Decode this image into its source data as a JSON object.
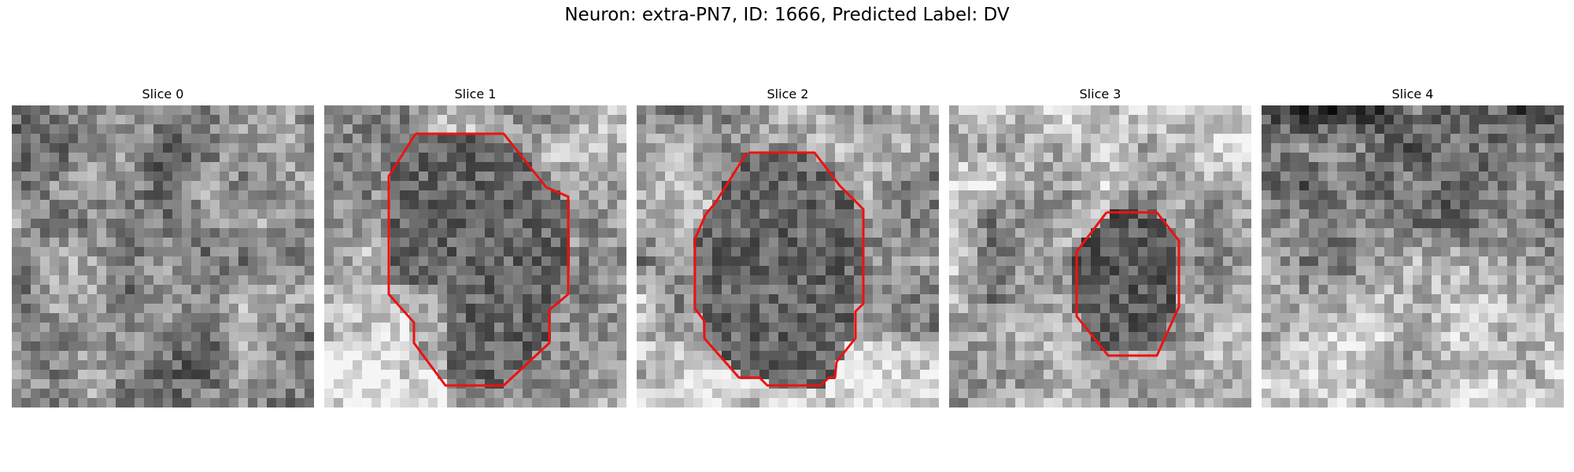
{
  "title": "Neuron: extra-PN7, ID: 1666, Predicted Label: DV",
  "slices": [
    {
      "label": "Slice 0",
      "has_contour": false,
      "texture": "noisy-gray-even",
      "seed": 11
    },
    {
      "label": "Slice 1",
      "has_contour": true,
      "texture": "dark-disc-bright-lower-left",
      "seed": 23
    },
    {
      "label": "Slice 2",
      "has_contour": true,
      "texture": "dark-disc-large",
      "seed": 37
    },
    {
      "label": "Slice 3",
      "has_contour": true,
      "texture": "dark-disc-small-lower",
      "seed": 51
    },
    {
      "label": "Slice 4",
      "has_contour": false,
      "texture": "dark-top-bright-bottom",
      "seed": 67
    }
  ],
  "contour_color": "#ee1111"
}
